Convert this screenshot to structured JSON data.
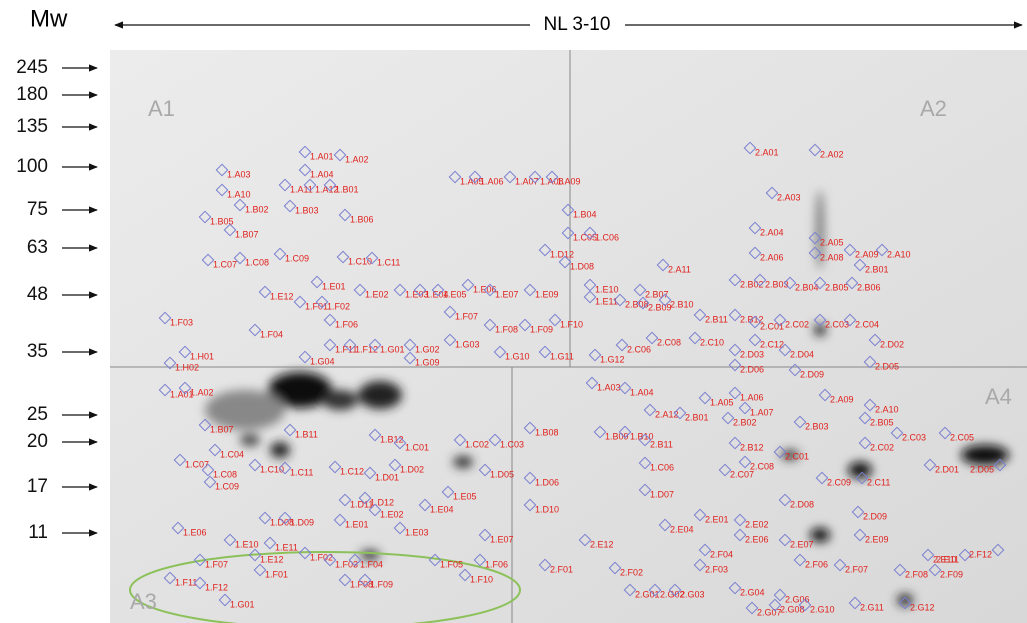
{
  "header": {
    "mw_title": "Mw",
    "ph_range": "NL 3-10"
  },
  "mw_markers": [
    "245",
    "180",
    "135",
    "100",
    "75",
    "63",
    "48",
    "35",
    "25",
    "20",
    "17",
    "11"
  ],
  "quadrants": [
    "A1",
    "A2",
    "A3",
    "A4"
  ],
  "spots": [
    "1.A01",
    "1.A02",
    "1.A03",
    "1.A04",
    "1.A10",
    "1.A11",
    "1.A12",
    "1.B01",
    "1.B02",
    "1.B03",
    "1.B05",
    "1.B06",
    "1.B07",
    "1.A05",
    "1.A06",
    "1.A07",
    "1.A08",
    "1.A09",
    "1.B04",
    "1.C05",
    "1.C06",
    "1.C07",
    "1.C08",
    "1.C09",
    "1.C10",
    "1.C11",
    "1.D12",
    "1.D08",
    "1.E01",
    "1.E02",
    "1.E03",
    "1.E04",
    "1.E05",
    "1.E06",
    "1.E07",
    "1.E09",
    "1.E10",
    "1.E11",
    "1.E12",
    "1.F01",
    "1.F02",
    "1.F03",
    "1.F04",
    "1.F06",
    "1.F07",
    "1.F08",
    "1.F09",
    "1.F10",
    "1.F11",
    "1.F12",
    "1.G01",
    "1.G02",
    "1.G03",
    "1.G04",
    "1.G09",
    "1.G10",
    "1.G11",
    "1.G12",
    "1.H01",
    "1.H02",
    "1.A01",
    "1.A02",
    "1.A03",
    "1.A04",
    "1.A05",
    "1.A06",
    "1.A07",
    "1.B07",
    "1.B08",
    "1.B09",
    "1.B10",
    "1.B11",
    "1.B12",
    "1.C01",
    "1.C02",
    "1.C03",
    "1.C04",
    "1.C06",
    "1.C07",
    "1.C08",
    "1.C09",
    "1.C10",
    "1.C11",
    "1.C12",
    "1.D01",
    "1.D02",
    "1.D05",
    "1.D06",
    "1.D07",
    "1.D08",
    "1.D09",
    "1.D10",
    "1.D11",
    "1.D12",
    "1.E01",
    "1.E02",
    "1.E03",
    "1.E04",
    "1.E05",
    "1.E06",
    "1.E07",
    "1.E10",
    "1.E11",
    "1.E12",
    "1.F01",
    "1.F02",
    "1.F03",
    "1.F04",
    "1.F05",
    "1.F06",
    "1.F07",
    "1.F08",
    "1.F09",
    "1.F10",
    "1.F11",
    "1.F12",
    "1.G01",
    "2.A01",
    "2.A02",
    "2.A03",
    "2.A04",
    "2.A05",
    "2.A06",
    "2.A08",
    "2.A09",
    "2.A10",
    "2.A11",
    "2.B01",
    "2.B02",
    "2.B03",
    "2.B04",
    "2.B05",
    "2.B06",
    "2.B07",
    "2.B08",
    "2.B09",
    "2.B10",
    "2.B11",
    "2.B12",
    "2.C01",
    "2.C02",
    "2.C03",
    "2.C04",
    "2.C06",
    "2.C08",
    "2.C10",
    "2.C12",
    "2.D02",
    "2.D03",
    "2.D04",
    "2.D05",
    "2.D06",
    "2.D09",
    "2.A09",
    "2.A10",
    "2.A12",
    "2.B01",
    "2.B02",
    "2.B03",
    "2.B05",
    "2.B11",
    "2.B12",
    "2.C01",
    "2.C02",
    "2.C03",
    "2.C05",
    "2.C07",
    "2.C08",
    "2.C09",
    "2.C11",
    "2.D01",
    "2.D05",
    "2.D08",
    "2.D09",
    "2.E01",
    "2.E02",
    "2.E04",
    "2.E06",
    "2.E07",
    "2.E09",
    "2.E10",
    "2.E11",
    "2.E12",
    "2.F01",
    "2.F02",
    "2.F03",
    "2.F04",
    "2.F06",
    "2.F07",
    "2.F08",
    "2.F09",
    "2.F12",
    "2.G01",
    "2.G02",
    "2.G03",
    "2.G04",
    "2.G06",
    "2.G07",
    "2.G08",
    "2.G10",
    "2.G11",
    "2.G12"
  ]
}
